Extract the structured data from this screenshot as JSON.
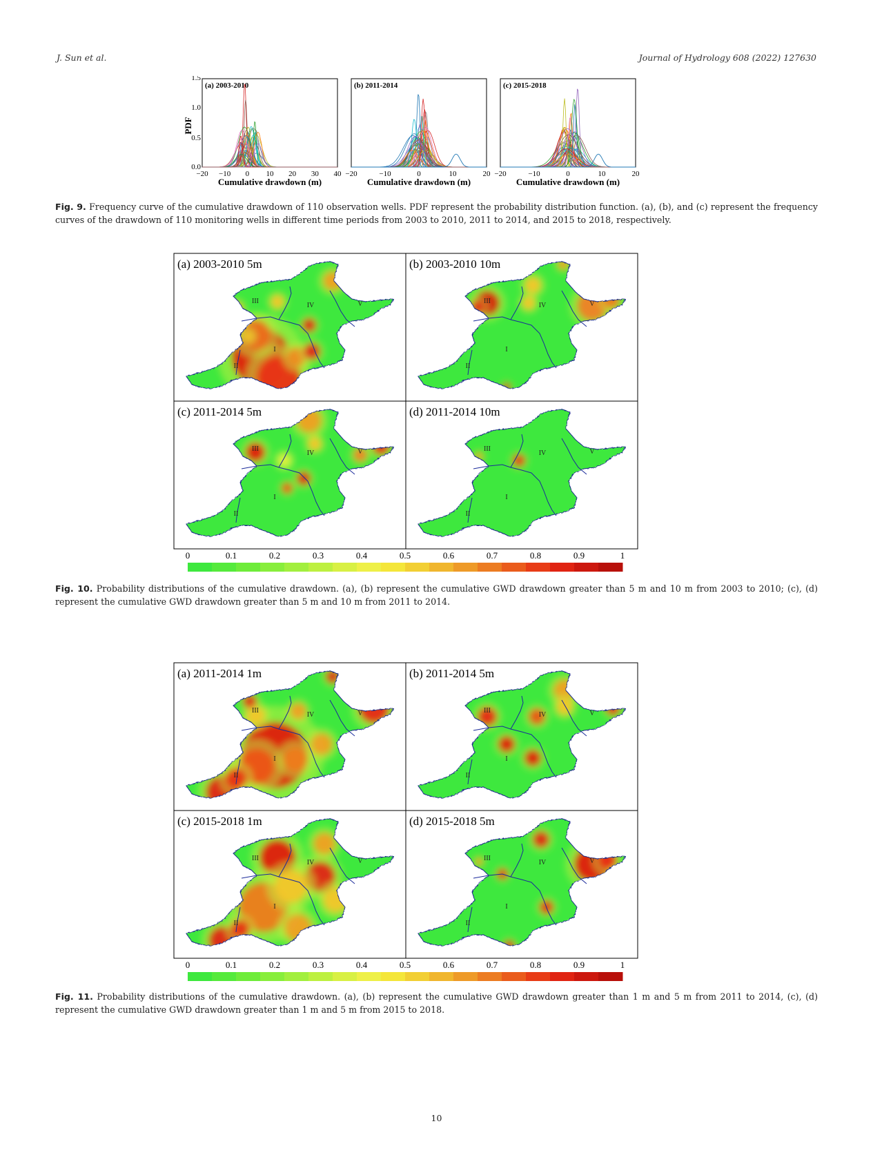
{
  "header": {
    "authors": "J. Sun et al.",
    "journal": "Journal of Hydrology 608 (2022) 127630"
  },
  "fig9": {
    "ylabel": "PDF",
    "xlabel": "Cumulative drawdown (m)",
    "yticks": [
      "0.0",
      "0.5",
      "1.0",
      "1.5"
    ],
    "panels": [
      {
        "label": "(a) 2003-2010",
        "xticks": [
          "−20",
          "−10",
          "0",
          "10",
          "20",
          "30",
          "40"
        ]
      },
      {
        "label": "(b) 2011-2014",
        "xticks": [
          "−20",
          "−10",
          "0",
          "10",
          "20"
        ]
      },
      {
        "label": "(c) 2015-2018",
        "xticks": [
          "−20",
          "−10",
          "0",
          "10",
          "20"
        ]
      }
    ],
    "caption_label": "Fig. 9.",
    "caption_text": "Frequency curve of the cumulative drawdown of 110 observation wells. PDF represent the probability distribution function. (a), (b), and (c) represent the frequency curves of the drawdown of 110 monitoring wells in different time periods from 2003 to 2010, 2011 to 2014, and 2015 to 2018, respectively."
  },
  "chart_data": [
    {
      "type": "line",
      "title": "(a) 2003-2010",
      "xlabel": "Cumulative drawdown (m)",
      "ylabel": "PDF",
      "xlim": [
        -20,
        40
      ],
      "ylim": [
        0,
        1.5
      ]
    },
    {
      "type": "line",
      "title": "(b) 2011-2014",
      "xlabel": "Cumulative drawdown (m)",
      "ylabel": "PDF",
      "xlim": [
        -20,
        20
      ],
      "ylim": [
        0,
        1.5
      ]
    },
    {
      "type": "line",
      "title": "(c) 2015-2018",
      "xlabel": "Cumulative drawdown (m)",
      "ylabel": "PDF",
      "xlim": [
        -20,
        20
      ],
      "ylim": [
        0,
        1.5
      ]
    }
  ],
  "fig10": {
    "panels": [
      "(a) 2003-2010  5m",
      "(b) 2003-2010  10m",
      "(c) 2011-2014  5m",
      "(d) 2011-2014  10m"
    ],
    "caption_label": "Fig. 10.",
    "caption_text": "Probability distributions of the cumulative drawdown. (a), (b) represent the cumulative GWD drawdown greater than 5 m and 10 m from 2003 to 2010; (c), (d) represent the cumulative GWD drawdown greater than 5 m and 10 m from 2011 to 2014."
  },
  "fig11": {
    "panels": [
      "(a) 2011-2014  1m",
      "(b) 2011-2014  5m",
      "(c) 2015-2018  1m",
      "(d) 2015-2018  5m"
    ],
    "caption_label": "Fig. 11.",
    "caption_text": "Probability distributions of the cumulative drawdown. (a), (b) represent the cumulative GWD drawdown greater than 1 m and 5 m from 2011 to 2014, (c), (d) represent the cumulative GWD drawdown greater than 1 m and 5 m from 2015 to 2018."
  },
  "zones": [
    "I",
    "II",
    "III",
    "IV",
    "V"
  ],
  "colorbar": {
    "ticks": [
      "0",
      "0.1",
      "0.2",
      "0.3",
      "0.4",
      "0.5",
      "0.6",
      "0.7",
      "0.8",
      "0.9",
      "1"
    ],
    "colors": [
      "#39e639",
      "#5ae83a",
      "#7dea3c",
      "#9eec3e",
      "#bfee40",
      "#dff042",
      "#f5ea2e",
      "#f3c62a",
      "#f0a024",
      "#ee7a1e",
      "#ec5418",
      "#ea2e12",
      "#d61a0e",
      "#b8120a",
      "#9a0a06",
      "#c01010",
      "#e0201a",
      "#f04020",
      "#f06028",
      "#f08030"
    ],
    "legend_colors": [
      "#3ee83e",
      "#55ea3c",
      "#6eec3a",
      "#88ee3c",
      "#a2ef3e",
      "#bdf040",
      "#d8f044",
      "#eef048",
      "#f4e63a",
      "#f2cf34",
      "#f0b62e",
      "#ee9a28",
      "#ec7c22",
      "#ea5c1c",
      "#e83c16",
      "#e02412",
      "#cc180e",
      "#b8100a"
    ]
  },
  "page_number": "10"
}
